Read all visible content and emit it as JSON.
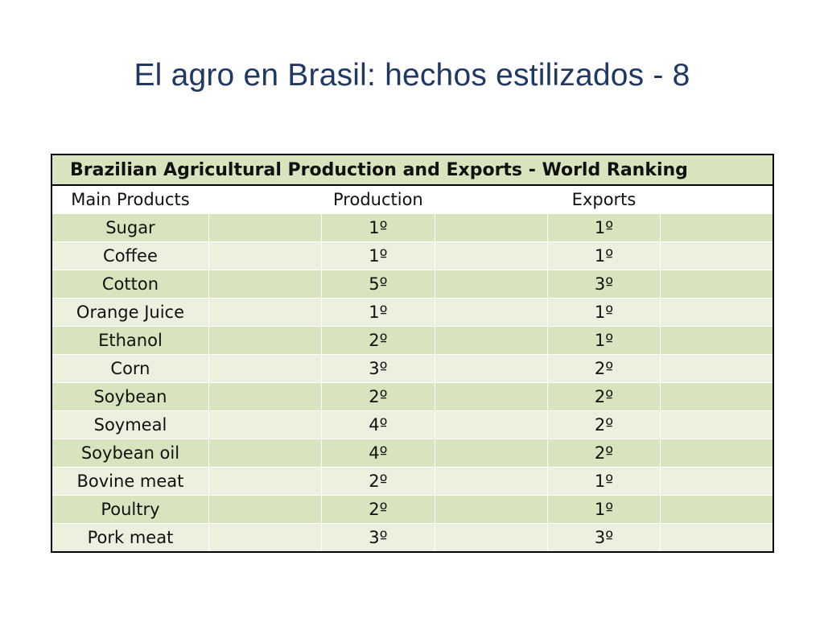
{
  "slide": {
    "title": "El agro en Brasil: hechos estilizados - 8"
  },
  "table": {
    "caption": "Brazilian Agricultural Production and Exports - World Ranking",
    "headers": {
      "product": "Main Products",
      "production": "Production",
      "exports": "Exports"
    },
    "rows": [
      {
        "product": "Sugar",
        "production": "1º",
        "exports": "1º"
      },
      {
        "product": "Coffee",
        "production": "1º",
        "exports": "1º"
      },
      {
        "product": "Cotton",
        "production": "5º",
        "exports": "3º"
      },
      {
        "product": "Orange Juice",
        "production": "1º",
        "exports": "1º"
      },
      {
        "product": "Ethanol",
        "production": "2º",
        "exports": "1º"
      },
      {
        "product": "Corn",
        "production": "3º",
        "exports": "2º"
      },
      {
        "product": "Soybean",
        "production": "2º",
        "exports": "2º"
      },
      {
        "product": "Soymeal",
        "production": "4º",
        "exports": "2º"
      },
      {
        "product": "Soybean oil",
        "production": "4º",
        "exports": "2º"
      },
      {
        "product": "Bovine meat",
        "production": "2º",
        "exports": "1º"
      },
      {
        "product": "Poultry",
        "production": "2º",
        "exports": "1º"
      },
      {
        "product": "Pork meat",
        "production": "3º",
        "exports": "3º"
      }
    ]
  },
  "colors": {
    "title": "#1F3864",
    "band_dark": "#D7E4BD",
    "band_light": "#EBF1DE"
  }
}
